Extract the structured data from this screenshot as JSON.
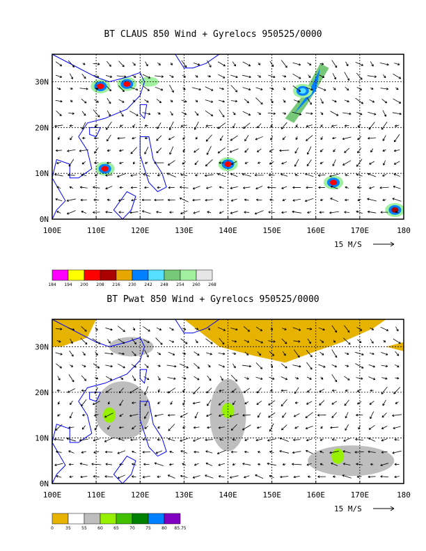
{
  "chart_data": [
    {
      "type": "heatmap",
      "title": "BT CLAUS 850 Wind + Gyrelocs 950525/0000",
      "x_ticks": [
        "100E",
        "110E",
        "120E",
        "130E",
        "140E",
        "150E",
        "160E",
        "170E",
        "180"
      ],
      "y_ticks": [
        "0N",
        "10N",
        "20N",
        "30N"
      ],
      "xlim": [
        100,
        180
      ],
      "ylim": [
        0,
        36
      ],
      "grid": true,
      "vector_scale_label": "15 M/S",
      "colorbar": {
        "levels": [
          "184",
          "194",
          "200",
          "208",
          "216",
          "230",
          "242",
          "248",
          "254",
          "260",
          "268"
        ],
        "colors": [
          "#ff00ff",
          "#ffff00",
          "#ff0000",
          "#aa0000",
          "#e6a800",
          "#0080ff",
          "#55e0ff",
          "#77c878",
          "#a0f0a0",
          "#e6e6e6"
        ]
      },
      "features": [
        {
          "lon": 111,
          "lat": 29,
          "value_bin": "200-208"
        },
        {
          "lon": 117,
          "lat": 29.5,
          "value_bin": "200-208"
        },
        {
          "lon": 112,
          "lat": 11,
          "value_bin": "200-208"
        },
        {
          "lon": 140,
          "lat": 12,
          "value_bin": "200-208"
        },
        {
          "lon": 164,
          "lat": 8,
          "value_bin": "200-208"
        },
        {
          "lon": 178,
          "lat": 2,
          "value_bin": "208-216"
        },
        {
          "lon": 157,
          "lat": 28,
          "value_bin": "242-248"
        }
      ]
    },
    {
      "type": "heatmap",
      "title": "BT Pwat 850 Wind + Gyrelocs 950525/0000",
      "x_ticks": [
        "100E",
        "110E",
        "120E",
        "130E",
        "140E",
        "150E",
        "160E",
        "170E",
        "180"
      ],
      "y_ticks": [
        "0N",
        "10N",
        "20N",
        "30N"
      ],
      "xlim": [
        100,
        180
      ],
      "ylim": [
        0,
        36
      ],
      "grid": true,
      "vector_scale_label": "15 M/S",
      "colorbar": {
        "levels": [
          "0",
          "35",
          "55",
          "60",
          "65",
          "70",
          "75",
          "80",
          "85.75"
        ],
        "colors": [
          "#e6b400",
          "#ffffff",
          "#bebebe",
          "#96f000",
          "#40c000",
          "#008000",
          "#0080ff",
          "#8000c0"
        ]
      },
      "features": [
        {
          "lon": 140,
          "lat": 16,
          "value_bin": "60-65"
        },
        {
          "lon": 165,
          "lat": 6,
          "value_bin": "60-65"
        },
        {
          "lon": 113,
          "lat": 15,
          "value_bin": "60-65"
        },
        {
          "lon": 150,
          "lat": 33,
          "value_bin": "0-35"
        },
        {
          "lon": 104,
          "lat": 33,
          "value_bin": "0-35"
        }
      ]
    }
  ]
}
